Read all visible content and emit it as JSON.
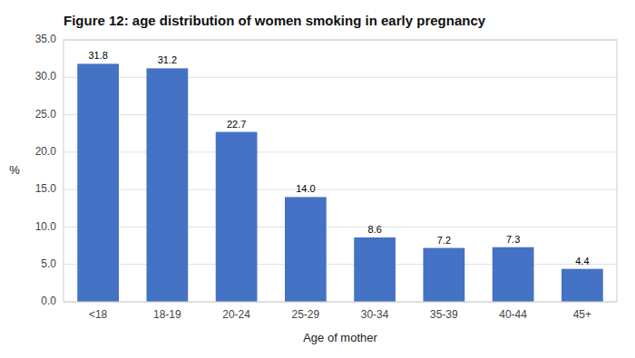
{
  "chart_data": {
    "type": "bar",
    "title": "Figure 12: age distribution of women smoking in early pregnancy",
    "categories": [
      "<18",
      "18-19",
      "20-24",
      "25-29",
      "30-34",
      "35-39",
      "40-44",
      "45+"
    ],
    "values": [
      31.8,
      31.2,
      22.7,
      14.0,
      8.6,
      7.2,
      7.3,
      4.4
    ],
    "value_labels": [
      "31.8",
      "31.2",
      "22.7",
      "14.0",
      "8.6",
      "7.2",
      "7.3",
      "4.4"
    ],
    "data_labels": true,
    "color": "#4472C4",
    "xlabel": "Age of mother",
    "ylabel": "%",
    "ylim": [
      0,
      35
    ],
    "yticks": [
      {
        "value": 0,
        "label": "0.0"
      },
      {
        "value": 5,
        "label": "5.0"
      },
      {
        "value": 10,
        "label": "10.0"
      },
      {
        "value": 15,
        "label": "15.0"
      },
      {
        "value": 20,
        "label": "20.0"
      },
      {
        "value": 25,
        "label": "25.0"
      },
      {
        "value": 30,
        "label": "30.0"
      },
      {
        "value": 35,
        "label": "35.0"
      }
    ],
    "grid": true
  }
}
